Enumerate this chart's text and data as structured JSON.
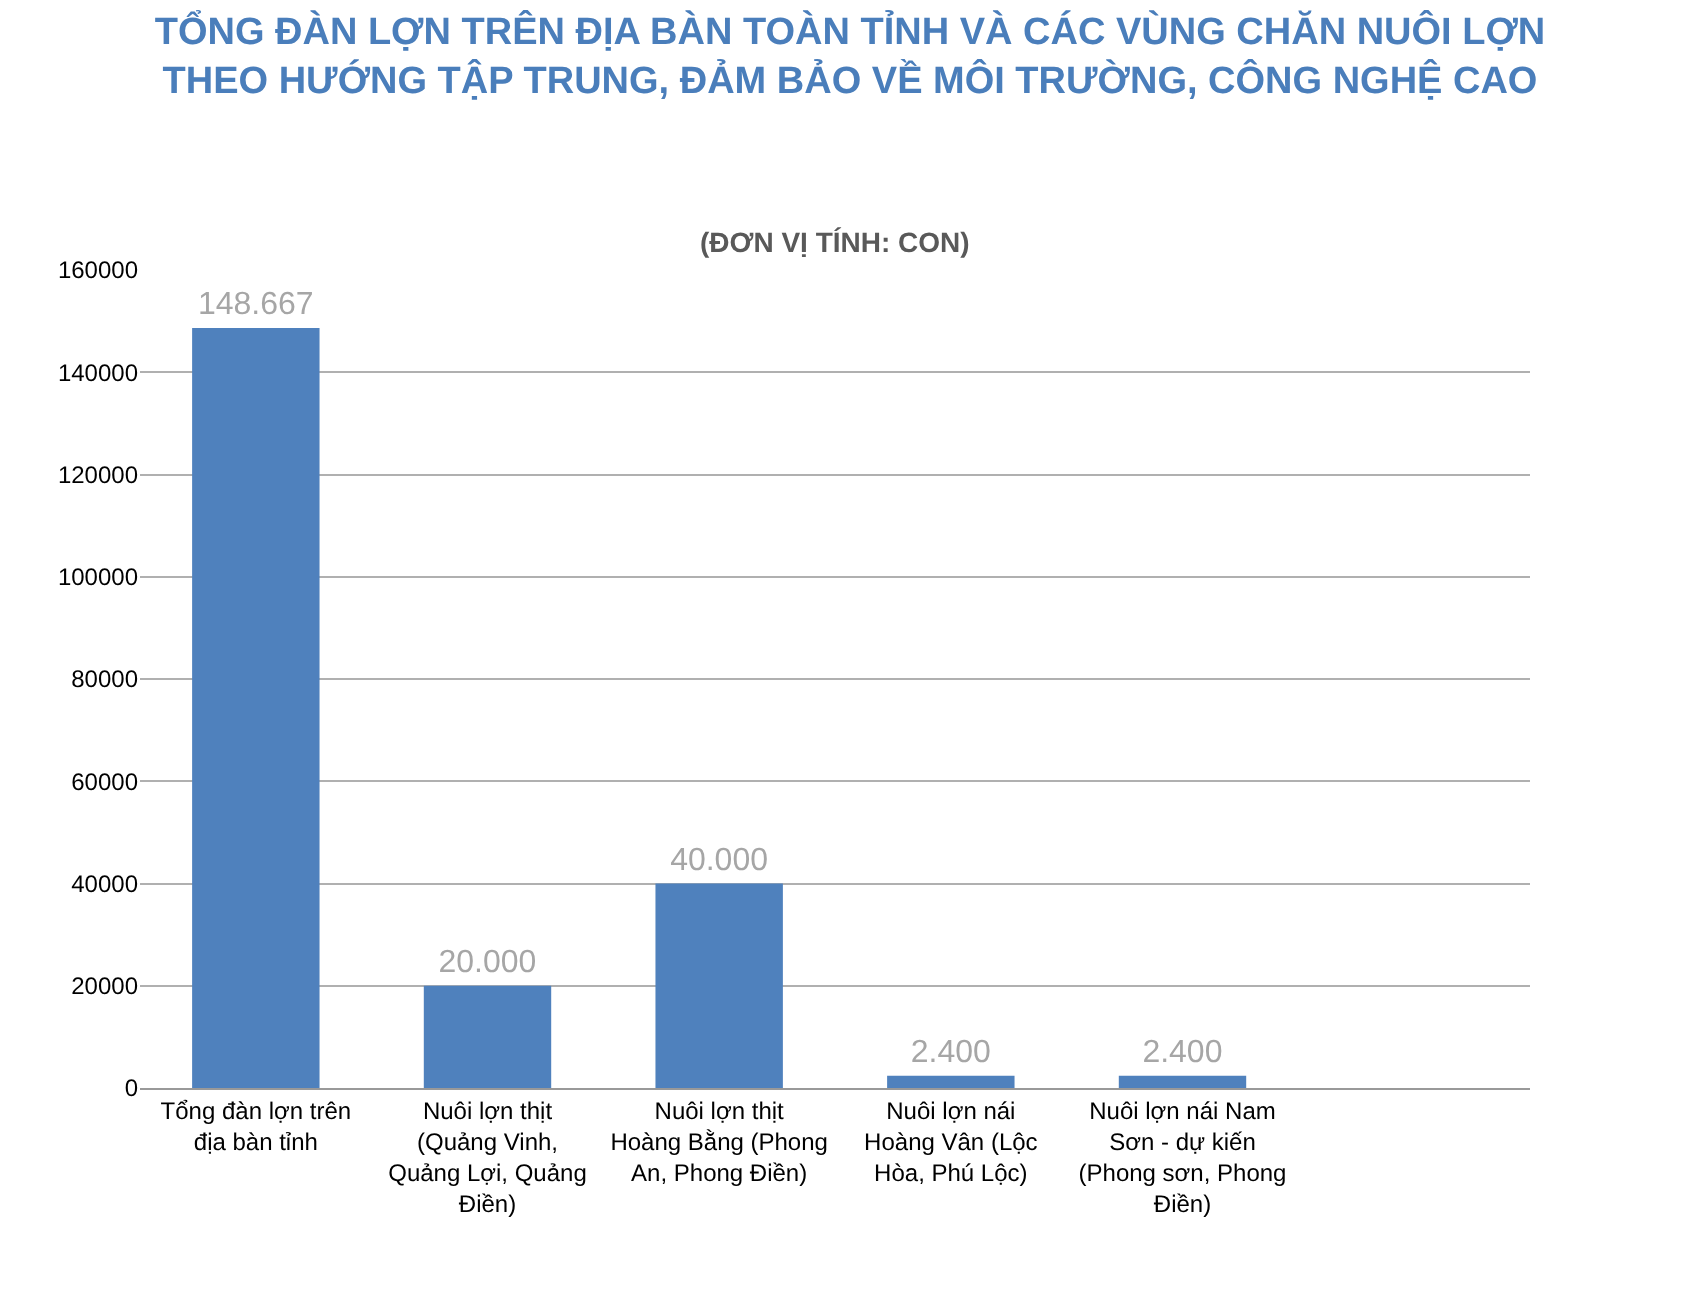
{
  "chart_data": {
    "type": "bar",
    "title": "TỔNG ĐÀN LỢN TRÊN ĐỊA BÀN TOÀN TỈNH VÀ CÁC VÙNG CHĂN NUÔI LỢN THEO HƯỚNG TẬP TRUNG, ĐẢM BẢO VỀ MÔI TRƯỜNG, CÔNG NGHỆ CAO",
    "subtitle": "(ĐƠN VỊ TÍNH: CON)",
    "categories": [
      "Tổng đàn lợn trên địa bàn tỉnh",
      "Nuôi lợn thịt (Quảng Vinh, Quảng Lợi, Quảng Điền)",
      "Nuôi lợn thịt Hoàng Bằng (Phong An, Phong Điền)",
      "Nuôi lợn nái Hoàng Vân (Lộc Hòa, Phú Lộc)",
      "Nuôi lợn nái Nam Sơn - dự kiến (Phong sơn, Phong Điền)",
      null
    ],
    "values": [
      148667,
      20000,
      40000,
      2400,
      2400,
      null
    ],
    "value_labels": [
      "148.667",
      "20.000",
      "40.000",
      "2.400",
      "2.400",
      null
    ],
    "color": "#4f81bd",
    "ylim": [
      0,
      160000
    ],
    "yticks": [
      0,
      20000,
      40000,
      60000,
      80000,
      100000,
      120000,
      140000,
      160000
    ],
    "grid": "y",
    "legend": false
  }
}
